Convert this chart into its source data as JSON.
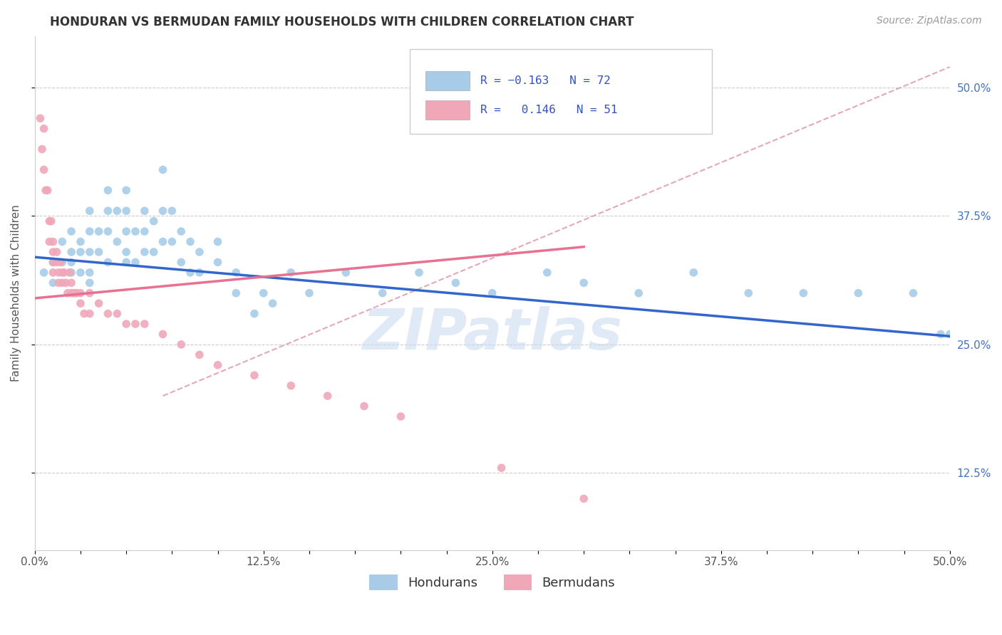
{
  "title": "HONDURAN VS BERMUDAN FAMILY HOUSEHOLDS WITH CHILDREN CORRELATION CHART",
  "source": "Source: ZipAtlas.com",
  "ylabel": "Family Households with Children",
  "xlim": [
    0.0,
    0.5
  ],
  "ylim": [
    0.05,
    0.55
  ],
  "xtick_labels": [
    "0.0%",
    "",
    "",
    "",
    "",
    "12.5%",
    "",
    "",
    "",
    "",
    "25.0%",
    "",
    "",
    "",
    "",
    "37.5%",
    "",
    "",
    "",
    "",
    "50.0%"
  ],
  "xtick_values": [
    0.0,
    0.025,
    0.05,
    0.075,
    0.1,
    0.125,
    0.15,
    0.175,
    0.2,
    0.225,
    0.25,
    0.275,
    0.3,
    0.325,
    0.35,
    0.375,
    0.4,
    0.425,
    0.45,
    0.475,
    0.5
  ],
  "ytick_labels": [
    "12.5%",
    "25.0%",
    "37.5%",
    "50.0%"
  ],
  "ytick_values": [
    0.125,
    0.25,
    0.375,
    0.5
  ],
  "legend_blue_label": "R = −0.163   N = 72",
  "legend_pink_label": "R =   0.146   N = 51",
  "legend_bottom_blue": "Hondurans",
  "legend_bottom_pink": "Bermudans",
  "watermark": "ZIPatlas",
  "blue_color": "#A8CCE8",
  "pink_color": "#F0A8B8",
  "blue_line_color": "#3366CC",
  "pink_line_color": "#E87090",
  "dashed_line_color": "#E0A0B0",
  "honduran_x": [
    0.005,
    0.01,
    0.01,
    0.015,
    0.015,
    0.02,
    0.02,
    0.02,
    0.02,
    0.025,
    0.025,
    0.025,
    0.03,
    0.03,
    0.03,
    0.03,
    0.03,
    0.035,
    0.035,
    0.04,
    0.04,
    0.04,
    0.04,
    0.045,
    0.045,
    0.05,
    0.05,
    0.05,
    0.05,
    0.05,
    0.055,
    0.055,
    0.06,
    0.06,
    0.06,
    0.065,
    0.065,
    0.07,
    0.07,
    0.07,
    0.075,
    0.075,
    0.08,
    0.08,
    0.085,
    0.085,
    0.09,
    0.09,
    0.1,
    0.1,
    0.11,
    0.11,
    0.12,
    0.125,
    0.13,
    0.14,
    0.15,
    0.17,
    0.19,
    0.21,
    0.23,
    0.25,
    0.28,
    0.3,
    0.33,
    0.36,
    0.39,
    0.42,
    0.45,
    0.48,
    0.495,
    0.5
  ],
  "honduran_y": [
    0.32,
    0.33,
    0.31,
    0.35,
    0.33,
    0.36,
    0.34,
    0.33,
    0.32,
    0.35,
    0.34,
    0.32,
    0.38,
    0.36,
    0.34,
    0.32,
    0.31,
    0.36,
    0.34,
    0.4,
    0.38,
    0.36,
    0.33,
    0.38,
    0.35,
    0.4,
    0.38,
    0.36,
    0.34,
    0.33,
    0.36,
    0.33,
    0.38,
    0.36,
    0.34,
    0.37,
    0.34,
    0.42,
    0.38,
    0.35,
    0.38,
    0.35,
    0.36,
    0.33,
    0.35,
    0.32,
    0.34,
    0.32,
    0.35,
    0.33,
    0.32,
    0.3,
    0.28,
    0.3,
    0.29,
    0.32,
    0.3,
    0.32,
    0.3,
    0.32,
    0.31,
    0.3,
    0.32,
    0.31,
    0.3,
    0.32,
    0.3,
    0.3,
    0.3,
    0.3,
    0.26,
    0.26
  ],
  "bermudan_x": [
    0.003,
    0.004,
    0.005,
    0.005,
    0.006,
    0.007,
    0.008,
    0.008,
    0.009,
    0.01,
    0.01,
    0.01,
    0.01,
    0.012,
    0.012,
    0.013,
    0.013,
    0.014,
    0.015,
    0.015,
    0.016,
    0.017,
    0.018,
    0.019,
    0.02,
    0.02,
    0.021,
    0.022,
    0.023,
    0.025,
    0.025,
    0.027,
    0.03,
    0.03,
    0.035,
    0.04,
    0.045,
    0.05,
    0.055,
    0.06,
    0.07,
    0.08,
    0.09,
    0.1,
    0.12,
    0.14,
    0.16,
    0.18,
    0.2,
    0.255,
    0.3
  ],
  "bermudan_y": [
    0.47,
    0.44,
    0.46,
    0.42,
    0.4,
    0.4,
    0.37,
    0.35,
    0.37,
    0.35,
    0.34,
    0.33,
    0.32,
    0.34,
    0.33,
    0.32,
    0.31,
    0.33,
    0.32,
    0.31,
    0.32,
    0.31,
    0.3,
    0.32,
    0.31,
    0.3,
    0.3,
    0.3,
    0.3,
    0.3,
    0.29,
    0.28,
    0.3,
    0.28,
    0.29,
    0.28,
    0.28,
    0.27,
    0.27,
    0.27,
    0.26,
    0.25,
    0.24,
    0.23,
    0.22,
    0.21,
    0.2,
    0.19,
    0.18,
    0.13,
    0.1
  ],
  "blue_line_x": [
    0.0,
    0.5
  ],
  "blue_line_y": [
    0.335,
    0.258
  ],
  "pink_line_x": [
    0.0,
    0.3
  ],
  "pink_line_y": [
    0.295,
    0.345
  ],
  "dashed_line_x": [
    0.07,
    0.5
  ],
  "dashed_line_y": [
    0.2,
    0.52
  ]
}
